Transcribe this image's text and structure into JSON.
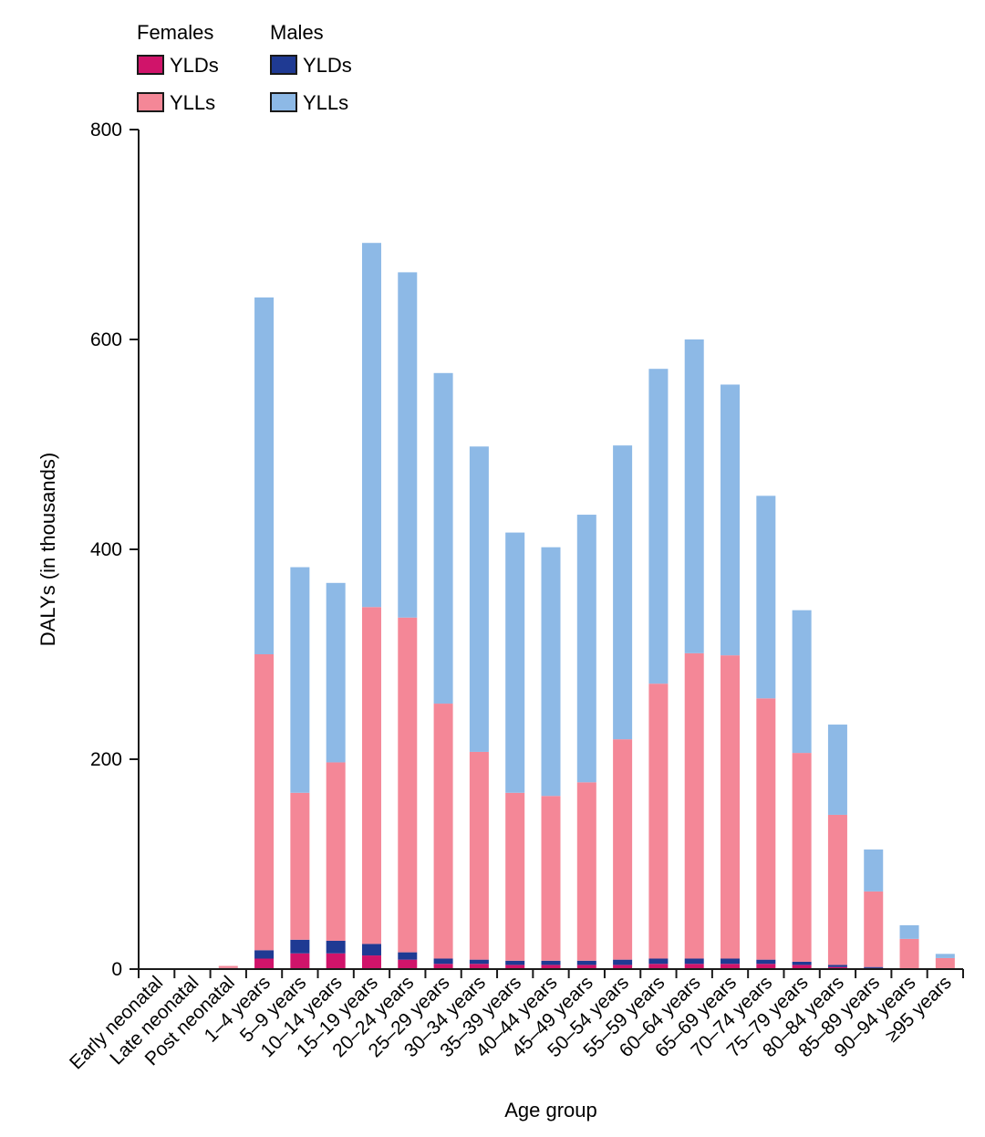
{
  "chart_data": {
    "type": "bar",
    "stacked": true,
    "xlabel": "Age group",
    "ylabel": "DALYs (in thousands)",
    "ylim": [
      0,
      800
    ],
    "yticks": [
      0,
      200,
      400,
      600,
      800
    ],
    "legend": {
      "groups": [
        {
          "title": "Females",
          "items": [
            {
              "label": "YLDs",
              "color": "#d0146a"
            },
            {
              "label": "YLLs",
              "color": "#f48797"
            }
          ]
        },
        {
          "title": "Males",
          "items": [
            {
              "label": "YLDs",
              "color": "#1f3a93"
            },
            {
              "label": "YLLs",
              "color": "#8db9e6"
            }
          ]
        }
      ],
      "placement": "top-left"
    },
    "categories": [
      "Early neonatal",
      "Late neonatal",
      "Post neonatal",
      "1–4 years",
      "5–9 years",
      "10–14 years",
      "15–19 years",
      "20–24 years",
      "25–29 years",
      "30–34 years",
      "35–39 years",
      "40–44 years",
      "45–49 years",
      "50–54 years",
      "55–59 years",
      "60–64 years",
      "65–69 years",
      "70–74 years",
      "75–79 years",
      "80–84 years",
      "85–89 years",
      "90–94 years",
      "≥95 years"
    ],
    "series": [
      {
        "name": "Females YLDs",
        "color": "#d0146a",
        "values": [
          0,
          0,
          0.5,
          10,
          15,
          15,
          13,
          9,
          5,
          5,
          4,
          4,
          4,
          4,
          5,
          5,
          5,
          5,
          4,
          2,
          1,
          0.5,
          0.3
        ]
      },
      {
        "name": "Males YLDs",
        "color": "#1f3a93",
        "values": [
          0,
          0,
          0.5,
          8,
          13,
          12,
          11,
          7,
          5,
          4,
          4,
          4,
          4,
          5,
          5,
          5,
          5,
          4,
          3,
          2,
          1,
          0.3,
          0.2
        ]
      },
      {
        "name": "Females YLLs",
        "color": "#f48797",
        "values": [
          0,
          0,
          2,
          282,
          140,
          170,
          321,
          319,
          243,
          198,
          160,
          157,
          170,
          210,
          262,
          291,
          289,
          249,
          199,
          143,
          72,
          28,
          10
        ]
      },
      {
        "name": "Males YLLs",
        "color": "#8db9e6",
        "values": [
          0,
          0,
          0,
          340,
          215,
          171,
          347,
          329,
          315,
          291,
          248,
          237,
          255,
          280,
          300,
          299,
          258,
          193,
          136,
          86,
          40,
          13,
          4
        ]
      }
    ]
  }
}
